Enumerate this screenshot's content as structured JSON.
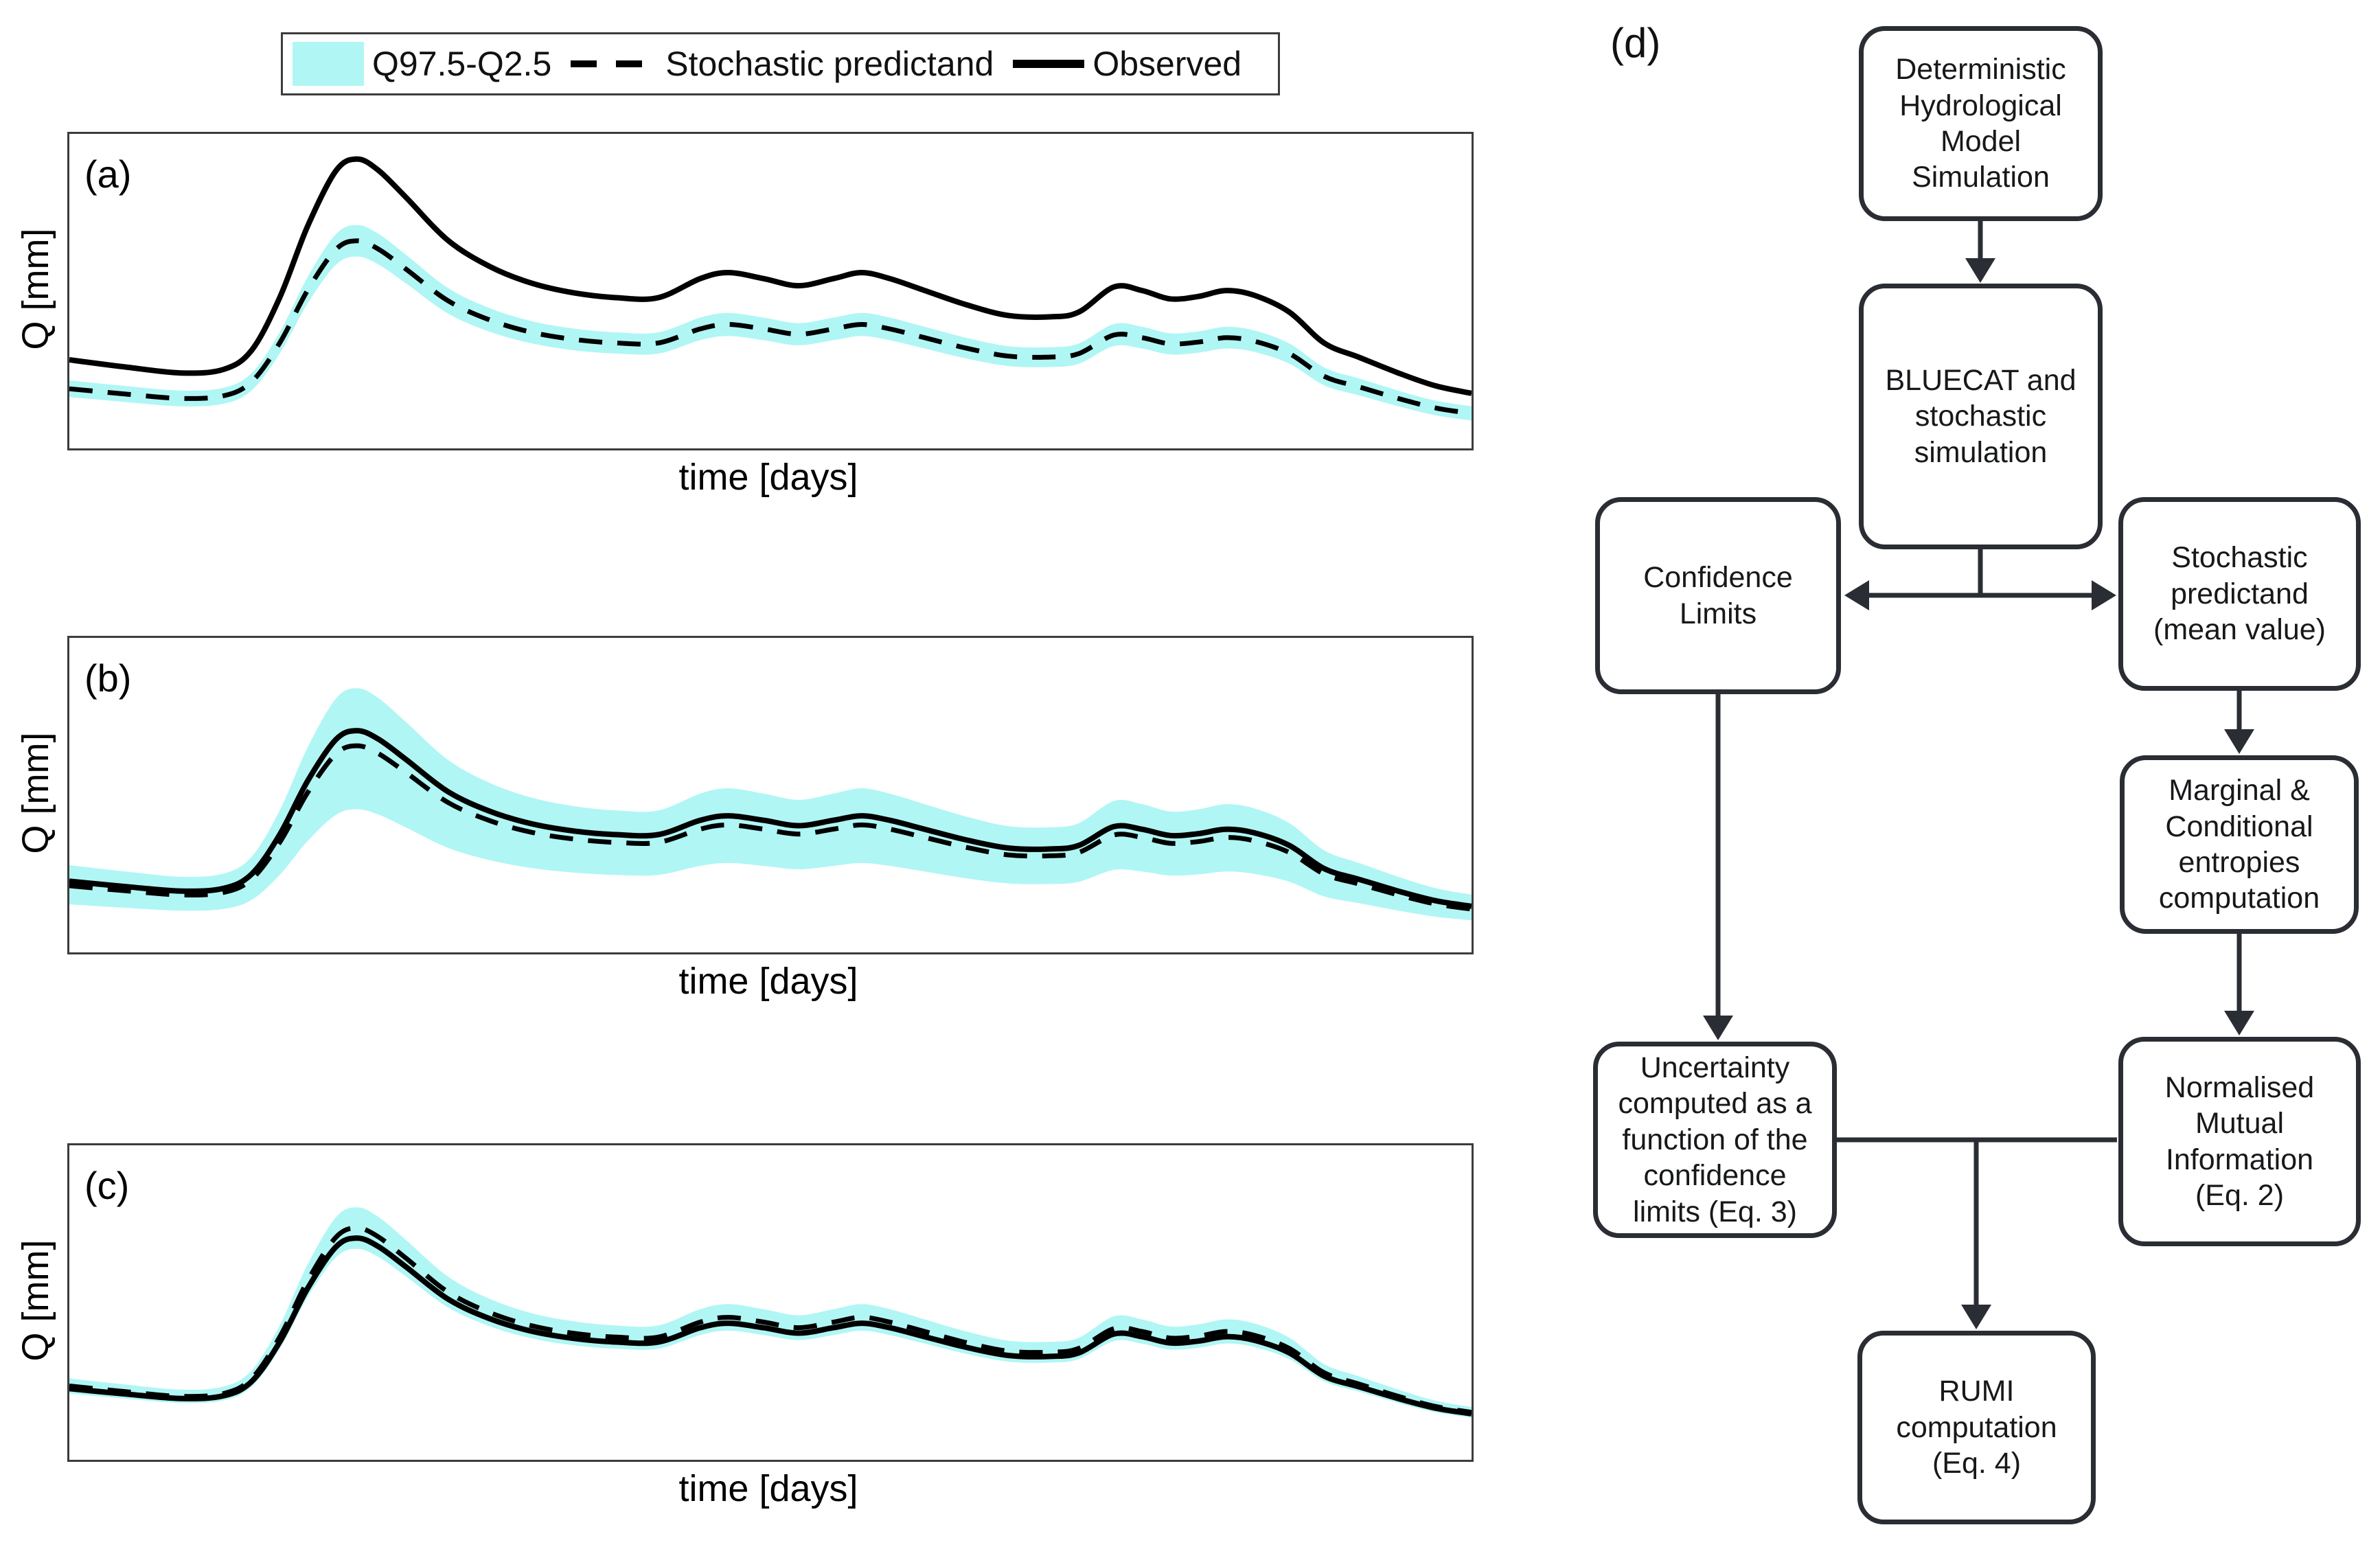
{
  "legend": {
    "band_label": "Q97.5-Q2.5",
    "pred_label": "Stochastic predictand",
    "obs_label": "Observed"
  },
  "colors": {
    "band": "#b0f6f5",
    "line": "#000000",
    "axis": "#3c3c3c",
    "flowchart_stroke": "#2a2d33"
  },
  "chart_data": {
    "type": "line",
    "xlabel": "time [days]",
    "ylabel": "Q [mm]",
    "axes_note": "no tick marks or numeric labels shown",
    "legend_entries": [
      "Q97.5-Q2.5",
      "Stochastic predictand",
      "Observed"
    ],
    "t_percent": [
      0,
      4,
      8,
      11,
      13,
      15,
      17,
      19,
      20.5,
      22,
      24,
      27,
      30,
      33,
      36,
      39,
      42,
      45,
      47,
      49.5,
      52,
      54.5,
      56.5,
      58.5,
      61,
      64,
      67,
      70,
      72,
      74.5,
      76.5,
      78.5,
      80.5,
      82.5,
      84.5,
      87,
      89.5,
      92,
      95,
      97.5,
      100
    ],
    "shape_s": [
      0.16,
      0.13,
      0.105,
      0.12,
      0.2,
      0.42,
      0.72,
      0.95,
      1.0,
      0.955,
      0.84,
      0.66,
      0.55,
      0.48,
      0.44,
      0.42,
      0.42,
      0.5,
      0.525,
      0.5,
      0.47,
      0.5,
      0.525,
      0.5,
      0.45,
      0.39,
      0.345,
      0.34,
      0.36,
      0.465,
      0.45,
      0.415,
      0.425,
      0.45,
      0.43,
      0.36,
      0.23,
      0.17,
      0.1,
      0.05,
      0.02
    ],
    "panels": [
      {
        "label": "(a)",
        "description": "Observed hydrograph lies well above the stochastic predictand; narrow Q97.5-Q2.5 band hugs the dashed predictand",
        "obs": [
          0.16,
          0.76
        ],
        "pred": [
          0.1,
          0.56
        ],
        "upper": [
          0.122,
          0.588
        ],
        "lower": [
          0.078,
          0.532
        ]
      },
      {
        "label": "(b)",
        "description": "Observed and stochastic predictand nearly coincide (predictand slightly below); wide Q97.5-Q2.5 band",
        "obs": [
          0.135,
          0.57
        ],
        "pred": [
          0.127,
          0.53
        ],
        "upper": [
          0.17,
          0.67
        ],
        "lower": [
          0.095,
          0.36
        ]
      },
      {
        "label": "(c)",
        "description": "Observed and stochastic predictand overlap (predictand slightly above at peak); narrow Q97.5-Q2.5 band",
        "obs": [
          0.135,
          0.57
        ],
        "pred": [
          0.139,
          0.598
        ],
        "upper": [
          0.155,
          0.648
        ],
        "lower": [
          0.123,
          0.548
        ]
      }
    ]
  },
  "flowchart": {
    "label": "(d)",
    "nodes": [
      {
        "id": "deterministic-model",
        "text": "Deterministic\nHydrological\nModel\nSimulation"
      },
      {
        "id": "bluecat",
        "text": "BLUECAT and\nstochastic\nsimulation"
      },
      {
        "id": "confidence-limits",
        "text": "Confidence\nLimits"
      },
      {
        "id": "stochastic-predictand",
        "text": "Stochastic\npredictand\n(mean value)"
      },
      {
        "id": "entropies",
        "text": "Marginal &\nConditional\nentropies\ncomputation"
      },
      {
        "id": "nmi",
        "text": "Normalised\nMutual\nInformation\n(Eq. 2)"
      },
      {
        "id": "uncertainty",
        "text": "Uncertainty\ncomputed as a\nfunction of the\nconfidence\nlimits (Eq. 3)"
      },
      {
        "id": "rumi",
        "text": "RUMI\ncomputation\n(Eq. 4)"
      }
    ]
  }
}
